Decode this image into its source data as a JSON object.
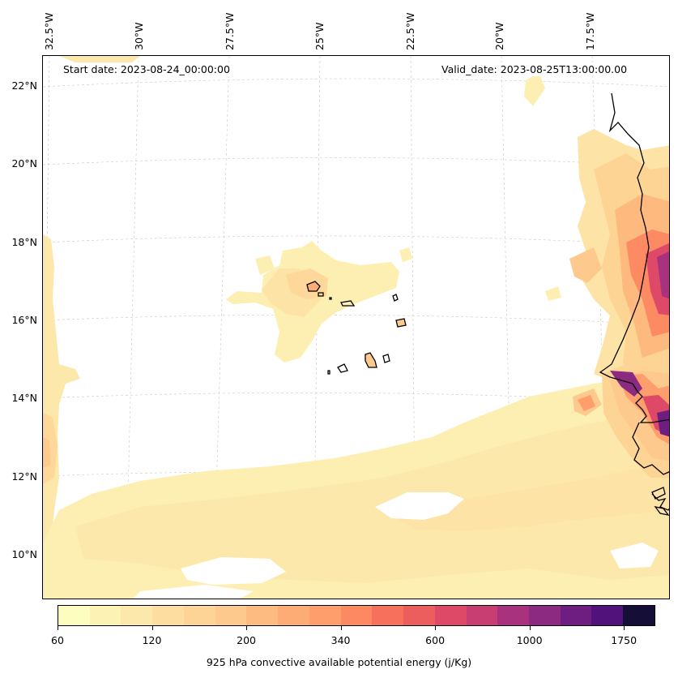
{
  "map": {
    "start_date": "Start date: 2023-08-24_00:00:00",
    "valid_date": "Valid_date: 2023-08-25T13:00:00.00",
    "lon_labels": [
      "32.5°W",
      "30°W",
      "27.5°W",
      "25°W",
      "22.5°W",
      "20°W",
      "17.5°W"
    ],
    "lat_labels": [
      "22°N",
      "20°N",
      "18°N",
      "16°N",
      "14°N",
      "12°N",
      "10°N"
    ],
    "gridlines": true
  },
  "colorbar": {
    "title": "925 hPa convective available potential energy (j/Kg)",
    "tick_labels": [
      "60",
      "120",
      "200",
      "340",
      "600",
      "1000",
      "1750"
    ],
    "level_colors": [
      "#fcfdbf",
      "#fcf2b4",
      "#fde8ab",
      "#fddea0",
      "#fdd496",
      "#fec98d",
      "#febb81",
      "#feac76",
      "#fe9e6c",
      "#fc8961",
      "#f7705c",
      "#ec5e5e",
      "#de4968",
      "#c83e73",
      "#a8327d",
      "#8c2981",
      "#6e1e81",
      "#51127c",
      "#150e37"
    ]
  }
}
